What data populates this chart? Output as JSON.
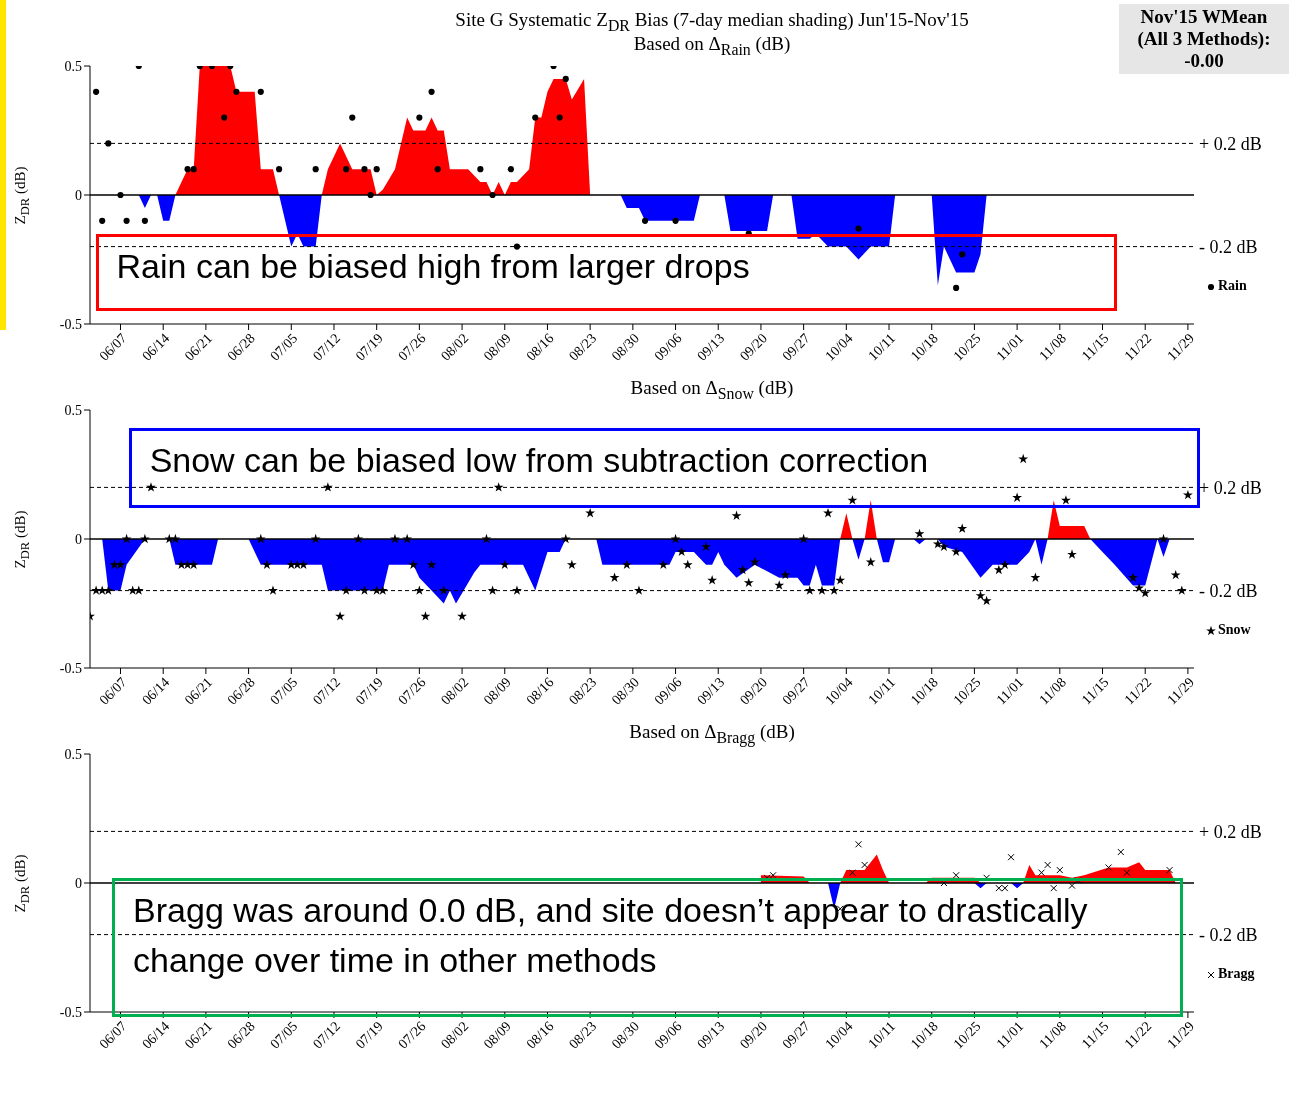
{
  "chart_data": [
    {
      "type": "area",
      "title": "Site G Systematic Z$_{DR}$ Bias (7-day median shading) Jun'15-Nov'15",
      "subtitle": "Based on Δ$_{Rain}$ (dB)",
      "ylabel": "Z$_{DR}$ (dB)",
      "annotations": [
        "Rain can be biased high from larger drops",
        "Nov'15 WMean\n(All 3 Methods):\n-0.00"
      ],
      "xlim": [
        "--06-02",
        "--11-30"
      ],
      "xticks": [
        {
          "value": "--06-07",
          "label": "06/07"
        },
        {
          "value": "--06-14",
          "label": "06/14"
        },
        {
          "value": "--06-21",
          "label": "06/21"
        },
        {
          "value": "--06-28",
          "label": "06/28"
        },
        {
          "value": "--07-05",
          "label": "07/05"
        },
        {
          "value": "--07-12",
          "label": "07/12"
        },
        {
          "value": "--07-19",
          "label": "07/19"
        },
        {
          "value": "--07-26",
          "label": "07/26"
        },
        {
          "value": "--08-02",
          "label": "08/02"
        },
        {
          "value": "--08-09",
          "label": "08/09"
        },
        {
          "value": "--08-16",
          "label": "08/16"
        },
        {
          "value": "--08-23",
          "label": "08/23"
        },
        {
          "value": "--08-30",
          "label": "08/30"
        },
        {
          "value": "--09-06",
          "label": "09/06"
        },
        {
          "value": "--09-13",
          "label": "09/13"
        },
        {
          "value": "--09-20",
          "label": "09/20"
        },
        {
          "value": "--09-27",
          "label": "09/27"
        },
        {
          "value": "--10-04",
          "label": "10/04"
        },
        {
          "value": "--10-11",
          "label": "10/11"
        },
        {
          "value": "--10-18",
          "label": "10/18"
        },
        {
          "value": "--10-25",
          "label": "10/25"
        },
        {
          "value": "--11-01",
          "label": "11/01"
        },
        {
          "value": "--11-08",
          "label": "11/08"
        },
        {
          "value": "--11-15",
          "label": "11/15"
        },
        {
          "value": "--11-22",
          "label": "11/22"
        },
        {
          "value": "--11-29",
          "label": "11/29"
        }
      ],
      "ylim": [
        -0.5,
        0.5
      ],
      "yticks": [
        -0.5,
        0,
        0.5
      ],
      "legend": "right",
      "ref_lines": [
        {
          "axis": "y",
          "value": 0,
          "line_style": "solid"
        },
        {
          "axis": "y",
          "value": 0.2,
          "label": "+ 0.2 dB",
          "line_style": "dashed"
        },
        {
          "axis": "y",
          "value": -0.2,
          "label": "- 0.2 dB",
          "line_style": "dashed"
        }
      ],
      "series": [
        {
          "color": "#ff0000",
          "x": [
            "--06-16",
            "--06-17",
            "--06-18",
            "--06-19",
            "--06-20",
            "--06-25",
            "--06-26",
            "--06-29",
            "--06-30",
            "--07-02",
            "--07-03",
            "--07-10",
            "--07-11",
            "--07-13",
            "--07-15",
            "--07-18",
            "--07-19",
            "--07-20",
            "--07-22",
            "--07-24",
            "--07-25",
            "--07-27",
            "--07-28",
            "--07-29",
            "--07-30",
            "--07-31",
            "--08-03",
            "--08-05",
            "--08-06",
            "--08-07",
            "--08-08",
            "--08-09",
            "--08-10",
            "--08-11",
            "--08-13",
            "--08-14",
            "--08-15",
            "--08-16",
            "--08-17",
            "--08-19",
            "--08-20",
            "--08-22",
            "--08-23"
          ],
          "values": [
            0,
            0.05,
            0.1,
            0.1,
            0.5,
            0.5,
            0.4,
            0.4,
            0.1,
            0.1,
            0,
            0,
            0.1,
            0.2,
            0.1,
            0.1,
            0,
            0.02,
            0.1,
            0.3,
            0.25,
            0.25,
            0.3,
            0.25,
            0.25,
            0.1,
            0.1,
            0.05,
            0.05,
            0,
            0.05,
            0,
            0.05,
            0.05,
            0.1,
            0.3,
            0.3,
            0.4,
            0.45,
            0.45,
            0.37,
            0.45,
            0
          ]
        },
        {
          "color": "#0000ff",
          "x": [
            "--06-10",
            "--06-11",
            "--06-12",
            "--06-13",
            "--06-14",
            "--06-15",
            "--06-16",
            "--07-03",
            "--07-04",
            "--07-05",
            "--07-06",
            "--07-07",
            "--07-09",
            "--07-10",
            "--08-28",
            "--08-29",
            "--08-31",
            "--09-01",
            "--09-09",
            "--09-10",
            "--09-14",
            "--09-15",
            "--09-21",
            "--09-22",
            "--09-25",
            "--09-26",
            "--09-28",
            "--09-29",
            "--10-01",
            "--10-04",
            "--10-06",
            "--10-08",
            "--10-11",
            "--10-12",
            "--10-18",
            "--10-19",
            "--10-20",
            "--10-22",
            "--10-25",
            "--10-26",
            "--10-27"
          ],
          "values": [
            0,
            -0.05,
            0,
            0,
            -0.1,
            -0.1,
            0,
            0,
            -0.1,
            -0.2,
            -0.15,
            -0.2,
            -0.2,
            0,
            0,
            -0.05,
            -0.05,
            -0.1,
            -0.1,
            0,
            0,
            -0.14,
            -0.14,
            0,
            0,
            -0.17,
            -0.17,
            -0.15,
            -0.2,
            -0.2,
            -0.25,
            -0.2,
            -0.2,
            0,
            0,
            -0.35,
            -0.2,
            -0.3,
            -0.3,
            -0.23,
            0
          ]
        },
        {
          "type": "scatter",
          "name": "Rain",
          "color": "#000000",
          "marker": "circle",
          "x": [
            "--06-03",
            "--06-04",
            "--06-05",
            "--06-07",
            "--06-08",
            "--06-10",
            "--06-11",
            "--06-18",
            "--06-19",
            "--06-20",
            "--06-22",
            "--06-24",
            "--06-25",
            "--06-26",
            "--06-30",
            "--07-03",
            "--07-09",
            "--07-14",
            "--07-15",
            "--07-17",
            "--07-18",
            "--07-19",
            "--07-26",
            "--07-28",
            "--07-29",
            "--08-05",
            "--08-07",
            "--08-10",
            "--08-11",
            "--08-14",
            "--08-17",
            "--08-18",
            "--08-19",
            "--09-01",
            "--09-06",
            "--09-18",
            "--10-06",
            "--10-22",
            "--10-23"
          ],
          "values": [
            0.4,
            -0.1,
            0.2,
            0,
            -0.1,
            0.5,
            -0.1,
            0.1,
            0.1,
            0.5,
            0.5,
            0.3,
            0.5,
            0.4,
            0.4,
            0.1,
            0.1,
            0.1,
            0.3,
            0.1,
            0,
            0.1,
            0.3,
            0.4,
            0.1,
            0.1,
            0,
            0.1,
            -0.2,
            0.3,
            0.5,
            0.3,
            0.45,
            -0.1,
            -0.1,
            -0.15,
            -0.13,
            -0.36,
            -0.23
          ]
        }
      ]
    },
    {
      "type": "area",
      "title": "Based on Δ$_{Snow}$ (dB)",
      "ylabel": "Z$_{DR}$ (dB)",
      "annotations": [
        "Snow can be biased low from subtraction correction"
      ],
      "xlim": [
        "--06-02",
        "--11-30"
      ],
      "xticks": [
        {
          "value": "--06-07",
          "label": "06/07"
        },
        {
          "value": "--06-14",
          "label": "06/14"
        },
        {
          "value": "--06-21",
          "label": "06/21"
        },
        {
          "value": "--06-28",
          "label": "06/28"
        },
        {
          "value": "--07-05",
          "label": "07/05"
        },
        {
          "value": "--07-12",
          "label": "07/12"
        },
        {
          "value": "--07-19",
          "label": "07/19"
        },
        {
          "value": "--07-26",
          "label": "07/26"
        },
        {
          "value": "--08-02",
          "label": "08/02"
        },
        {
          "value": "--08-09",
          "label": "08/09"
        },
        {
          "value": "--08-16",
          "label": "08/16"
        },
        {
          "value": "--08-23",
          "label": "08/23"
        },
        {
          "value": "--08-30",
          "label": "08/30"
        },
        {
          "value": "--09-06",
          "label": "09/06"
        },
        {
          "value": "--09-13",
          "label": "09/13"
        },
        {
          "value": "--09-20",
          "label": "09/20"
        },
        {
          "value": "--09-27",
          "label": "09/27"
        },
        {
          "value": "--10-04",
          "label": "10/04"
        },
        {
          "value": "--10-11",
          "label": "10/11"
        },
        {
          "value": "--10-18",
          "label": "10/18"
        },
        {
          "value": "--10-25",
          "label": "10/25"
        },
        {
          "value": "--11-01",
          "label": "11/01"
        },
        {
          "value": "--11-08",
          "label": "11/08"
        },
        {
          "value": "--11-15",
          "label": "11/15"
        },
        {
          "value": "--11-22",
          "label": "11/22"
        },
        {
          "value": "--11-29",
          "label": "11/29"
        }
      ],
      "ylim": [
        -0.5,
        0.5
      ],
      "yticks": [
        -0.5,
        0,
        0.5
      ],
      "legend": "right",
      "ref_lines": [
        {
          "axis": "y",
          "value": 0,
          "line_style": "solid"
        },
        {
          "axis": "y",
          "value": 0.2,
          "label": "+ 0.2 dB",
          "line_style": "dashed"
        },
        {
          "axis": "y",
          "value": -0.2,
          "label": "- 0.2 dB",
          "line_style": "dashed"
        }
      ],
      "series": [
        {
          "color": "#ff0000",
          "x": [
            "--10-03",
            "--10-04",
            "--10-05",
            "--10-07",
            "--10-08",
            "--10-09",
            "--11-06",
            "--11-07",
            "--11-08",
            "--11-12",
            "--11-13"
          ],
          "values": [
            0,
            0.1,
            0,
            0,
            0.15,
            0,
            0,
            0.15,
            0.05,
            0.05,
            0
          ]
        },
        {
          "color": "#0000ff",
          "x": [
            "--06-04",
            "--06-05",
            "--06-07",
            "--06-08",
            "--06-11",
            "--06-15",
            "--06-16",
            "--06-22",
            "--06-23",
            "--06-28",
            "--06-30",
            "--07-10",
            "--07-11",
            "--07-20",
            "--07-21",
            "--07-25",
            "--07-26",
            "--07-28",
            "--07-30",
            "--07-31",
            "--08-01",
            "--08-04",
            "--08-05",
            "--08-12",
            "--08-14",
            "--08-16",
            "--08-18",
            "--08-19",
            "--08-24",
            "--08-25",
            "--09-05",
            "--09-06",
            "--09-09",
            "--09-11",
            "--09-12",
            "--09-13",
            "--09-14",
            "--09-16",
            "--09-19",
            "--09-23",
            "--09-26",
            "--09-27",
            "--09-28",
            "--09-29",
            "--09-30",
            "--10-02",
            "--10-03",
            "--10-05",
            "--10-06",
            "--10-07",
            "--10-09",
            "--10-10",
            "--10-11",
            "--10-12",
            "--10-15",
            "--10-16",
            "--10-17",
            "--10-19",
            "--10-20",
            "--10-23",
            "--10-26",
            "--10-28",
            "--11-01",
            "--11-03",
            "--11-04",
            "--11-05",
            "--11-06",
            "--11-13",
            "--11-15",
            "--11-17",
            "--11-20",
            "--11-22",
            "--11-24",
            "--11-25",
            "--11-26"
          ],
          "values": [
            0,
            -0.2,
            -0.2,
            -0.1,
            0,
            0,
            -0.1,
            -0.1,
            0,
            0,
            -0.1,
            -0.1,
            -0.2,
            -0.2,
            -0.1,
            -0.1,
            -0.15,
            -0.2,
            -0.25,
            -0.2,
            -0.25,
            -0.13,
            -0.1,
            -0.1,
            -0.2,
            -0.05,
            -0.05,
            0,
            0,
            -0.1,
            -0.1,
            -0.05,
            -0.05,
            -0.1,
            -0.1,
            -0.05,
            -0.1,
            -0.15,
            -0.1,
            -0.15,
            -0.15,
            -0.18,
            -0.18,
            -0.1,
            -0.18,
            -0.18,
            0,
            0,
            -0.08,
            0,
            0,
            -0.09,
            -0.09,
            0,
            0,
            -0.02,
            0,
            0,
            -0.03,
            -0.05,
            -0.15,
            -0.1,
            -0.1,
            -0.05,
            0,
            -0.1,
            0,
            0,
            -0.05,
            -0.1,
            -0.18,
            -0.18,
            0,
            -0.07,
            0
          ]
        },
        {
          "type": "scatter",
          "name": "Snow",
          "color": "#000000",
          "marker": "star",
          "x": [
            "--06-02",
            "--06-03",
            "--06-04",
            "--06-05",
            "--06-06",
            "--06-07",
            "--06-08",
            "--06-09",
            "--06-10",
            "--06-11",
            "--06-12",
            "--06-15",
            "--06-16",
            "--06-17",
            "--06-18",
            "--06-19",
            "--06-30",
            "--07-01",
            "--07-02",
            "--07-05",
            "--07-06",
            "--07-07",
            "--07-09",
            "--07-11",
            "--07-13",
            "--07-14",
            "--07-16",
            "--07-17",
            "--07-19",
            "--07-20",
            "--07-22",
            "--07-24",
            "--07-25",
            "--07-26",
            "--07-27",
            "--07-28",
            "--07-30",
            "--08-02",
            "--08-06",
            "--08-07",
            "--08-08",
            "--08-09",
            "--08-11",
            "--08-19",
            "--08-20",
            "--08-23",
            "--08-27",
            "--08-29",
            "--08-31",
            "--09-04",
            "--09-06",
            "--09-07",
            "--09-08",
            "--09-11",
            "--09-12",
            "--09-16",
            "--09-17",
            "--09-18",
            "--09-19",
            "--09-23",
            "--09-24",
            "--09-27",
            "--09-28",
            "--09-30",
            "--10-01",
            "--10-02",
            "--10-03",
            "--10-05",
            "--10-08",
            "--10-16",
            "--10-19",
            "--10-20",
            "--10-22",
            "--10-23",
            "--10-26",
            "--10-27",
            "--10-29",
            "--10-30",
            "--11-01",
            "--11-02",
            "--11-04",
            "--11-09",
            "--11-10",
            "--11-20",
            "--11-21",
            "--11-22",
            "--11-25",
            "--11-27",
            "--11-28",
            "--11-29"
          ],
          "values": [
            -0.3,
            -0.2,
            -0.2,
            -0.2,
            -0.1,
            -0.1,
            0,
            -0.2,
            -0.2,
            0,
            0.2,
            0,
            0,
            -0.1,
            -0.1,
            -0.1,
            0,
            -0.1,
            -0.2,
            -0.1,
            -0.1,
            -0.1,
            0,
            0.2,
            -0.3,
            -0.2,
            0,
            -0.2,
            -0.2,
            -0.2,
            0,
            0,
            -0.1,
            -0.2,
            -0.3,
            -0.1,
            -0.2,
            -0.3,
            0,
            -0.2,
            0.2,
            -0.1,
            -0.2,
            0,
            -0.1,
            0.1,
            -0.15,
            -0.1,
            -0.2,
            -0.1,
            0,
            -0.05,
            -0.1,
            -0.03,
            -0.16,
            0.09,
            -0.12,
            -0.17,
            -0.09,
            -0.18,
            -0.14,
            0,
            -0.2,
            -0.2,
            0.1,
            -0.2,
            -0.16,
            0.15,
            -0.09,
            0.02,
            -0.02,
            -0.03,
            -0.05,
            0.04,
            -0.22,
            -0.24,
            -0.12,
            -0.1,
            0.16,
            0.31,
            -0.15,
            0.15,
            -0.06,
            -0.15,
            -0.19,
            -0.21,
            0,
            -0.14,
            -0.2,
            0.17
          ]
        }
      ]
    },
    {
      "type": "area",
      "title": "Based on Δ$_{Bragg}$ (dB)",
      "ylabel": "Z$_{DR}$ (dB)",
      "annotations": [
        "Bragg was around 0.0 dB, and site doesn’t appear to drastically change over time in other methods"
      ],
      "xlim": [
        "--06-02",
        "--11-30"
      ],
      "xticks": [
        {
          "value": "--06-07",
          "label": "06/07"
        },
        {
          "value": "--06-14",
          "label": "06/14"
        },
        {
          "value": "--06-21",
          "label": "06/21"
        },
        {
          "value": "--06-28",
          "label": "06/28"
        },
        {
          "value": "--07-05",
          "label": "07/05"
        },
        {
          "value": "--07-12",
          "label": "07/12"
        },
        {
          "value": "--07-19",
          "label": "07/19"
        },
        {
          "value": "--07-26",
          "label": "07/26"
        },
        {
          "value": "--08-02",
          "label": "08/02"
        },
        {
          "value": "--08-09",
          "label": "08/09"
        },
        {
          "value": "--08-16",
          "label": "08/16"
        },
        {
          "value": "--08-23",
          "label": "08/23"
        },
        {
          "value": "--08-30",
          "label": "08/30"
        },
        {
          "value": "--09-06",
          "label": "09/06"
        },
        {
          "value": "--09-13",
          "label": "09/13"
        },
        {
          "value": "--09-20",
          "label": "09/20"
        },
        {
          "value": "--09-27",
          "label": "09/27"
        },
        {
          "value": "--10-04",
          "label": "10/04"
        },
        {
          "value": "--10-11",
          "label": "10/11"
        },
        {
          "value": "--10-18",
          "label": "10/18"
        },
        {
          "value": "--10-25",
          "label": "10/25"
        },
        {
          "value": "--11-01",
          "label": "11/01"
        },
        {
          "value": "--11-08",
          "label": "11/08"
        },
        {
          "value": "--11-15",
          "label": "11/15"
        },
        {
          "value": "--11-22",
          "label": "11/22"
        },
        {
          "value": "--11-29",
          "label": "11/29"
        }
      ],
      "ylim": [
        -0.5,
        0.5
      ],
      "yticks": [
        -0.5,
        0,
        0.5
      ],
      "legend": "right",
      "ref_lines": [
        {
          "axis": "y",
          "value": 0,
          "line_style": "solid"
        },
        {
          "axis": "y",
          "value": 0.2,
          "label": "+ 0.2 dB",
          "line_style": "dashed"
        },
        {
          "axis": "y",
          "value": -0.2,
          "label": "- 0.2 dB",
          "line_style": "dashed"
        }
      ],
      "series": [
        {
          "color": "#ff0000",
          "x": [
            "--09-20",
            "--09-27",
            "--09-28",
            "--10-03",
            "--10-04",
            "--10-07",
            "--10-08",
            "--10-09",
            "--10-10",
            "--10-11",
            "--10-17",
            "--10-18",
            "--10-25",
            "--10-26",
            "--11-02",
            "--11-03",
            "--11-04",
            "--11-08",
            "--11-10",
            "--11-12",
            "--11-16",
            "--11-19",
            "--11-21",
            "--11-22",
            "--11-26",
            "--11-27"
          ],
          "values": [
            0.03,
            0.025,
            0,
            0,
            0.05,
            0.05,
            0.08,
            0.11,
            0.05,
            0,
            0,
            0.02,
            0.02,
            0,
            0,
            0.07,
            0.03,
            0.03,
            0.02,
            0.03,
            0.06,
            0.06,
            0.08,
            0.05,
            0.05,
            0
          ]
        },
        {
          "color": "#0000ff",
          "x": [
            "--10-01",
            "--10-02",
            "--10-03",
            "--10-25",
            "--10-26",
            "--10-27",
            "--10-31",
            "--11-01",
            "--11-02"
          ],
          "values": [
            0,
            -0.1,
            0,
            0,
            -0.02,
            0,
            0,
            -0.02,
            0
          ]
        },
        {
          "type": "scatter",
          "name": "Bragg",
          "color": "#000000",
          "marker": "cross",
          "x": [
            "--09-21",
            "--09-22",
            "--10-03",
            "--10-05",
            "--10-06",
            "--10-07",
            "--10-20",
            "--10-22",
            "--10-27",
            "--10-29",
            "--10-30",
            "--10-31",
            "--11-05",
            "--11-06",
            "--11-07",
            "--11-08",
            "--11-10",
            "--11-11",
            "--11-16",
            "--11-18",
            "--11-19",
            "--11-26"
          ],
          "values": [
            0.02,
            0.03,
            -0.1,
            0.04,
            0.15,
            0.07,
            0,
            0.03,
            0.02,
            -0.02,
            -0.02,
            0.1,
            0.04,
            0.07,
            -0.02,
            0.05,
            -0.01,
            0.01,
            0.06,
            0.12,
            0.04,
            0.05
          ]
        }
      ]
    }
  ]
}
